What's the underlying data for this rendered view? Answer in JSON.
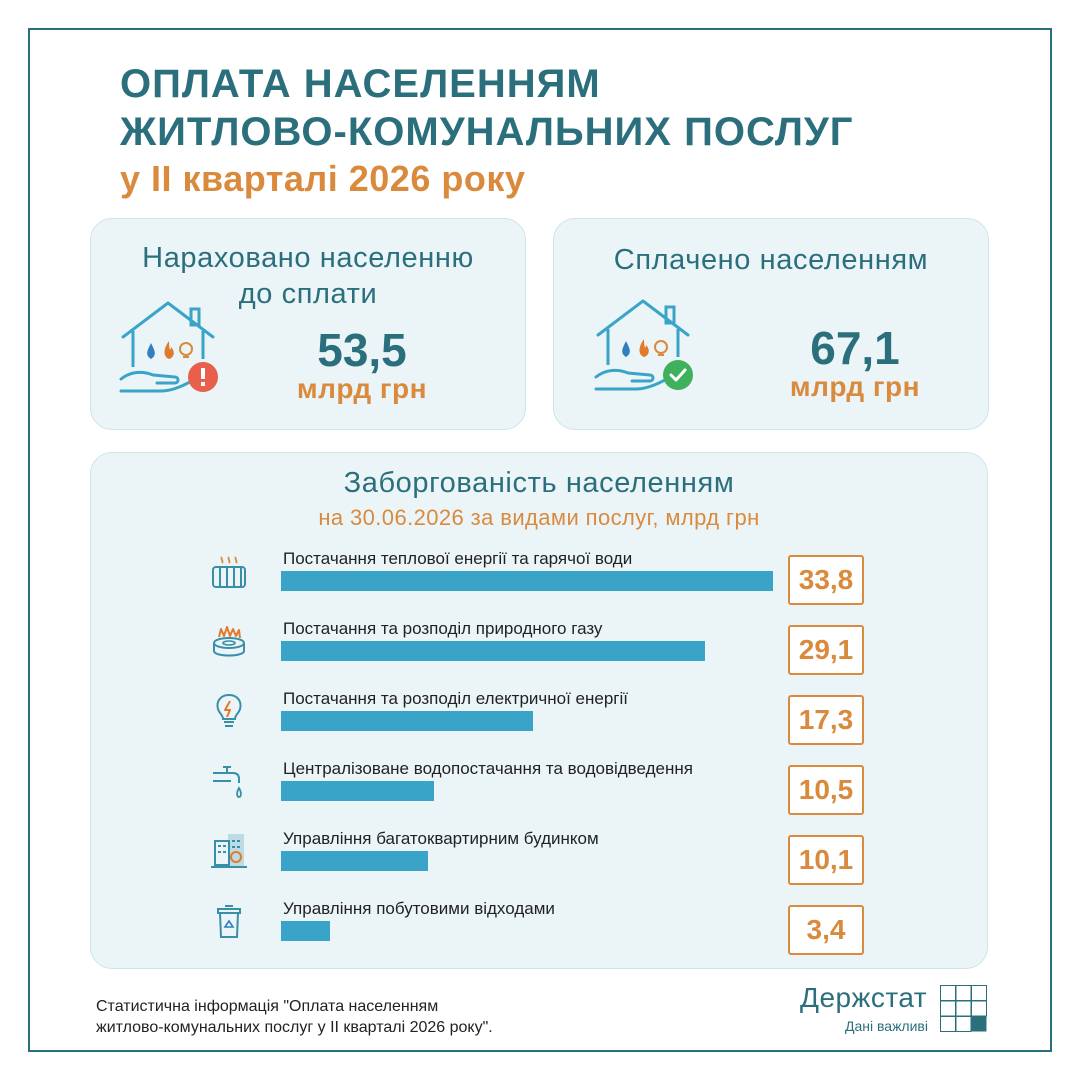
{
  "title": {
    "line1": "ОПЛАТА НАСЕЛЕННЯМ",
    "line2": "ЖИТЛОВО-КОМУНАЛЬНИХ ПОСЛУГ",
    "line3": "у II кварталі 2026 року"
  },
  "cards": {
    "accrued": {
      "title_line1": "Нараховано населенню",
      "title_line2": "до сплати",
      "value": "53,5",
      "unit": "млрд грн"
    },
    "paid": {
      "title": "Сплачено населенням",
      "value": "67,1",
      "unit": "млрд грн"
    }
  },
  "debt": {
    "title": "Заборгованість населенням",
    "subtitle": "на 30.06.2026 за видами послуг, млрд грн"
  },
  "chart_data": {
    "type": "bar",
    "orientation": "horizontal",
    "title": "Заборгованість населенням",
    "subtitle": "на 30.06.2026 за видами послуг, млрд грн",
    "categories": [
      "Постачання теплової енергії та гарячої води",
      "Постачання та розподіл природного газу",
      "Постачання та розподіл електричної енергії",
      "Централізоване водопостачання та водовідведення",
      "Управління багатоквартирним будинком",
      "Управління побутовими відходами"
    ],
    "values": [
      33.8,
      29.1,
      17.3,
      10.5,
      10.1,
      3.4
    ],
    "value_labels": [
      "33,8",
      "29,1",
      "17,3",
      "10,5",
      "10,1",
      "3,4"
    ],
    "icons": [
      "radiator-icon",
      "gas-burner-icon",
      "lightbulb-icon",
      "water-tap-icon",
      "apartment-building-icon",
      "trash-bin-icon"
    ],
    "bar_color": "#3aa4c8",
    "value_color": "#d98a3d"
  },
  "footer": {
    "line1": "Статистична інформація \"Оплата населенням",
    "line2": "житлово-комунальних послуг у II кварталі 2026 року\"."
  },
  "logo": {
    "name": "Держстат",
    "tagline": "Дані важливі"
  },
  "colors": {
    "primary": "#2b6f7d",
    "accent": "#d98a3d",
    "card_bg": "#ebf5f8",
    "bar": "#3aa4c8"
  }
}
